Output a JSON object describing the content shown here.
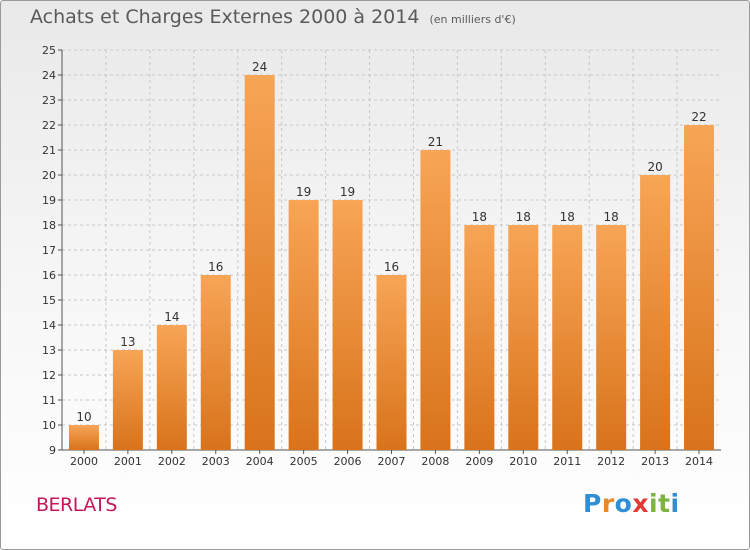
{
  "chart_data": {
    "type": "bar",
    "title": "Achats et Charges Externes 2000 à 2014",
    "subtitle": "(en milliers d'€)",
    "categories": [
      "2000",
      "2001",
      "2002",
      "2003",
      "2004",
      "2005",
      "2006",
      "2007",
      "2008",
      "2009",
      "2010",
      "2011",
      "2012",
      "2013",
      "2014"
    ],
    "values": [
      10,
      13,
      14,
      16,
      24,
      19,
      19,
      16,
      21,
      18,
      18,
      18,
      18,
      20,
      22
    ],
    "ylim": [
      9,
      25
    ],
    "yticks": [
      9,
      10,
      11,
      12,
      13,
      14,
      15,
      16,
      17,
      18,
      19,
      20,
      21,
      22,
      23,
      24,
      25
    ],
    "xlabel": "",
    "ylabel": "",
    "grid": true,
    "colors": {
      "bar_top": "#f7a556",
      "bar_bottom": "#d9731b",
      "grid": "#c8c8c8",
      "axis_text": "#333333"
    }
  },
  "commune": "BERLATS",
  "logo": {
    "text": "Proxiti",
    "letters": [
      "P",
      "r",
      "o",
      "x",
      "i",
      "t",
      "i"
    ]
  }
}
